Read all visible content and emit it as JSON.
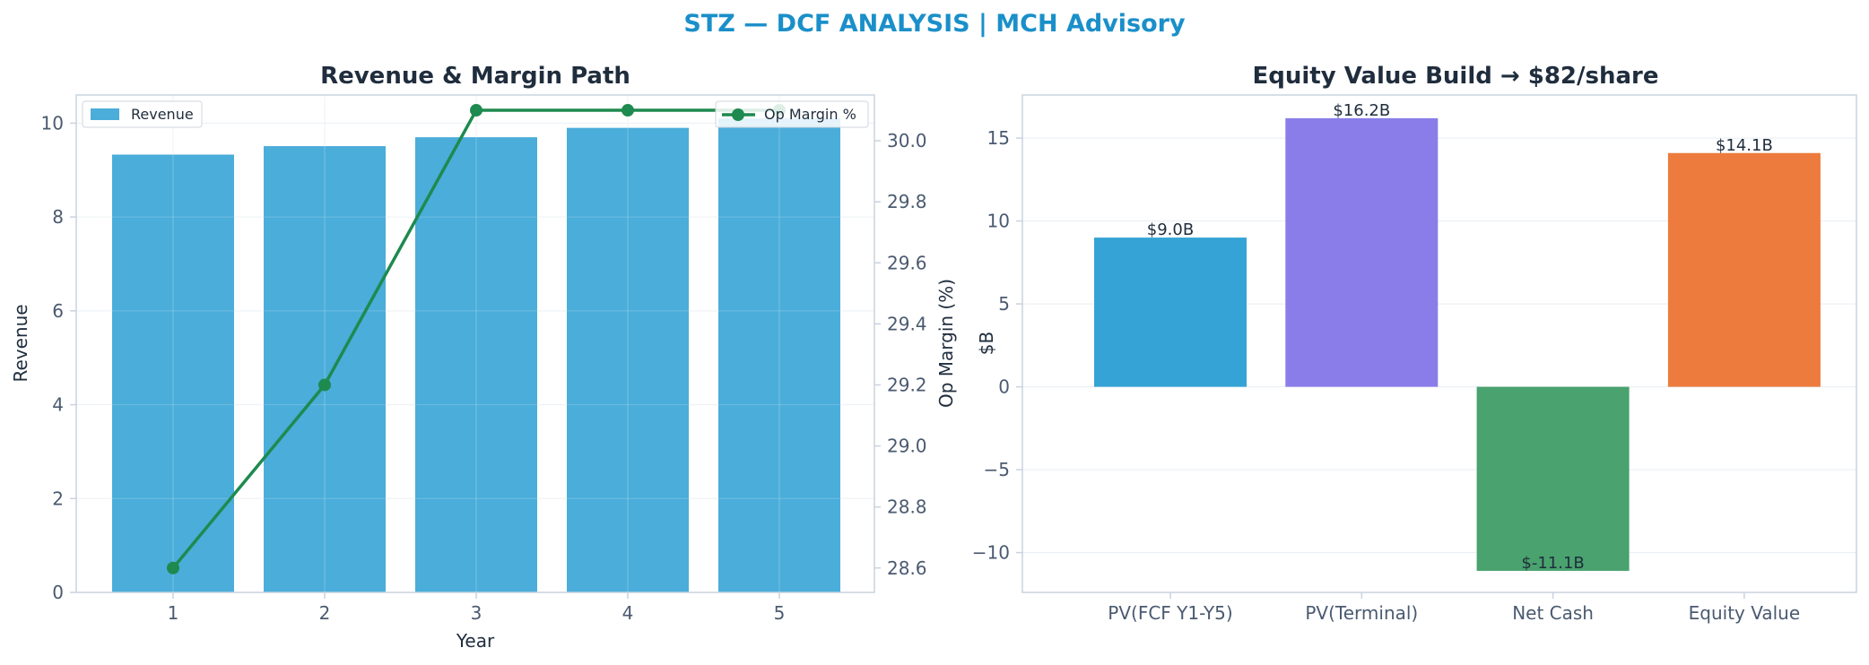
{
  "suptitle": "STZ — DCF ANALYSIS | MCH Advisory",
  "colors": {
    "suptitle": "#1a8fc9",
    "revenue_bar": "#4badd9",
    "op_margin_line": "#1e8a4f",
    "pv_fcf": "#35a3d5",
    "pv_terminal": "#8a7de9",
    "net_cash": "#4aa26e",
    "equity_value": "#ec7b3d"
  },
  "chart_data": [
    {
      "type": "bar",
      "title": "Revenue & Margin Path",
      "xlabel": "Year",
      "ylabel": "Revenue",
      "y2label": "Op Margin (%)",
      "categories": [
        "1",
        "2",
        "3",
        "4",
        "5"
      ],
      "series": [
        {
          "name": "Revenue",
          "type": "bar",
          "axis": "left",
          "values": [
            9.33,
            9.51,
            9.7,
            9.9,
            10.1
          ]
        },
        {
          "name": "Op Margin %",
          "type": "line",
          "axis": "right",
          "values": [
            28.6,
            29.2,
            30.1,
            30.1,
            30.1
          ]
        }
      ],
      "ylim": [
        0,
        10.6
      ],
      "y2lim": [
        28.52,
        30.15
      ],
      "yticks": [
        "0",
        "2",
        "4",
        "6",
        "8",
        "10"
      ],
      "y2ticks": [
        "28.6",
        "28.8",
        "29.0",
        "29.2",
        "29.4",
        "29.6",
        "29.8",
        "30.0"
      ],
      "grid": true,
      "legend": [
        "top-left",
        "top-right"
      ]
    },
    {
      "type": "bar",
      "title": "Equity Value Build → $82/share",
      "xlabel": "",
      "ylabel": "$B",
      "categories": [
        "PV(FCF Y1-Y5)",
        "PV(Terminal)",
        "Net Cash",
        "Equity Value"
      ],
      "values": [
        9.0,
        16.2,
        -11.1,
        14.1
      ],
      "data_labels": [
        "$9.0B",
        "$16.2B",
        "$-11.1B",
        "$14.1B"
      ],
      "ylim": [
        -12.4,
        17.6
      ],
      "yticks": [
        "−10",
        "−5",
        "0",
        "5",
        "10",
        "15"
      ],
      "grid": true
    }
  ]
}
